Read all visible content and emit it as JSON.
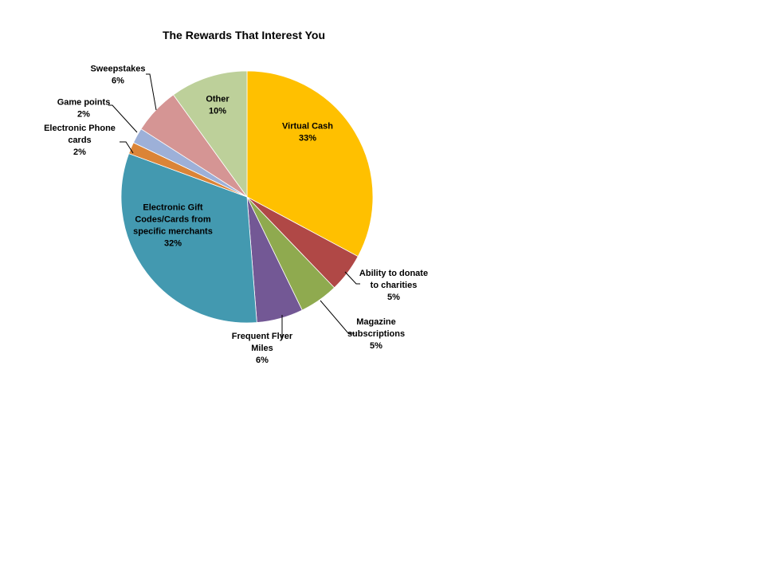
{
  "chart_data": {
    "type": "pie",
    "title": "The Rewards That Interest You",
    "slices": [
      {
        "label": "Virtual Cash",
        "value": 33,
        "value_label": "33%",
        "color": "#FFC000"
      },
      {
        "label": "Ability to donate to charities",
        "value": 5,
        "value_label": "5%",
        "color": "#B04846"
      },
      {
        "label": "Magazine subscriptions",
        "value": 5,
        "value_label": "5%",
        "color": "#8FAA4F"
      },
      {
        "label": "Frequent Flyer Miles",
        "value": 6,
        "value_label": "6%",
        "color": "#735895"
      },
      {
        "label": "Electronic Gift Codes/Cards from specific merchants",
        "value": 32,
        "value_label": "32%",
        "color": "#4399B0"
      },
      {
        "label": "Electronic Phone cards",
        "value": 1.5,
        "value_label": "2%",
        "color": "#DB8437"
      },
      {
        "label": "Game points",
        "value": 2,
        "value_label": "2%",
        "color": "#9DB0D8"
      },
      {
        "label": "Sweepstakes",
        "value": 6,
        "value_label": "6%",
        "color": "#D59594"
      },
      {
        "label": "Other",
        "value": 10,
        "value_label": "10%",
        "color": "#BDD09A"
      }
    ],
    "start_angle_deg": 0,
    "direction": "clockwise",
    "legend": "none"
  }
}
